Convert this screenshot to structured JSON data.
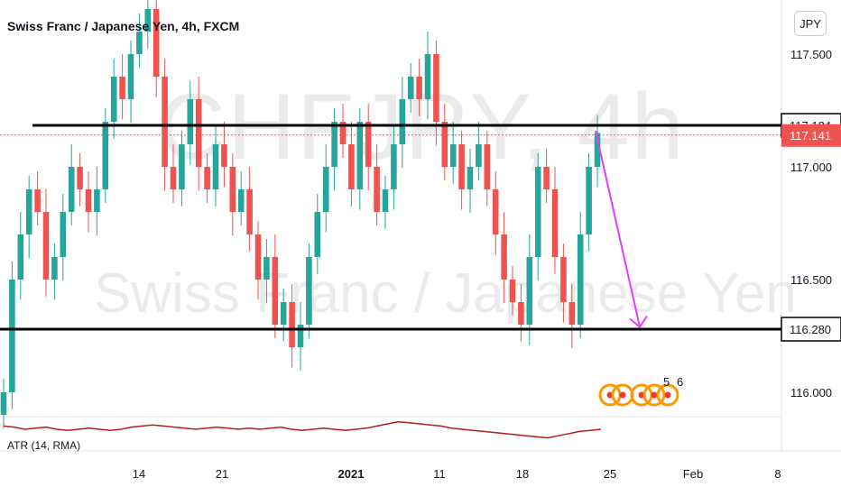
{
  "header": {
    "title": "Swiss Franc / Japanese Yen, 4h, FXCM",
    "currency_button": "JPY"
  },
  "watermark": {
    "symbol_line": "CHFJPY, 4h",
    "name_line": "Swiss Franc / Japanese Yen"
  },
  "indicator": {
    "label": "ATR (14, RMA)"
  },
  "colors": {
    "up": "#26a69a",
    "down": "#ef5350",
    "arrow": "#e040fb",
    "atr": "#b71c1c",
    "level": "#000000",
    "price_tag": "#ef5350",
    "event_icon": "#ff9800"
  },
  "chart_data": {
    "type": "candlestick",
    "symbol": "CHFJPY",
    "timeframe": "4h",
    "source": "FXCM",
    "ylim": [
      115.88,
      117.74
    ],
    "y_ticks": [
      "117.500",
      "117.000",
      "116.500",
      "116.000"
    ],
    "x_ticks": [
      "14",
      "21",
      "2021",
      "11",
      "18",
      "25",
      "Feb",
      "8"
    ],
    "levels": [
      {
        "price": 117.184,
        "label": "117.184"
      },
      {
        "price": 116.28,
        "label": "116.280"
      }
    ],
    "current_price": {
      "price": 117.141,
      "label": "117.141"
    },
    "projection_arrow": {
      "from_price": 117.16,
      "to_price": 116.29
    },
    "event_markers": [
      "5",
      "6"
    ],
    "candles_close": [
      116.0,
      116.5,
      116.7,
      116.9,
      116.8,
      116.5,
      116.6,
      116.8,
      117.0,
      116.9,
      116.8,
      116.9,
      117.2,
      117.4,
      117.3,
      117.5,
      117.6,
      117.7,
      117.4,
      117.0,
      116.9,
      117.1,
      117.3,
      117.0,
      116.9,
      117.1,
      117.0,
      116.8,
      116.9,
      116.7,
      116.5,
      116.6,
      116.3,
      116.4,
      116.2,
      116.3,
      116.6,
      116.8,
      117.0,
      117.2,
      117.1,
      116.9,
      117.2,
      117.0,
      116.8,
      116.9,
      117.1,
      117.3,
      117.4,
      117.3,
      117.5,
      117.2,
      117.0,
      117.1,
      116.9,
      117.0,
      117.1,
      116.9,
      116.7,
      116.5,
      116.4,
      116.3,
      116.6,
      117.0,
      116.9,
      116.6,
      116.4,
      116.3,
      116.7,
      117.0,
      117.15
    ],
    "atr_values": [
      0.33,
      0.32,
      0.3,
      0.31,
      0.32,
      0.3,
      0.29,
      0.3,
      0.31,
      0.3,
      0.29,
      0.3,
      0.32,
      0.33,
      0.34,
      0.33,
      0.32,
      0.31,
      0.3,
      0.31,
      0.32,
      0.31,
      0.3,
      0.31,
      0.3,
      0.31,
      0.32,
      0.3,
      0.29,
      0.3,
      0.31,
      0.3,
      0.29,
      0.3,
      0.31,
      0.33,
      0.35,
      0.37,
      0.36,
      0.35,
      0.34,
      0.33,
      0.31,
      0.3,
      0.29,
      0.28,
      0.27,
      0.26,
      0.25,
      0.24,
      0.23,
      0.22,
      0.24,
      0.26,
      0.28,
      0.29,
      0.3
    ]
  }
}
